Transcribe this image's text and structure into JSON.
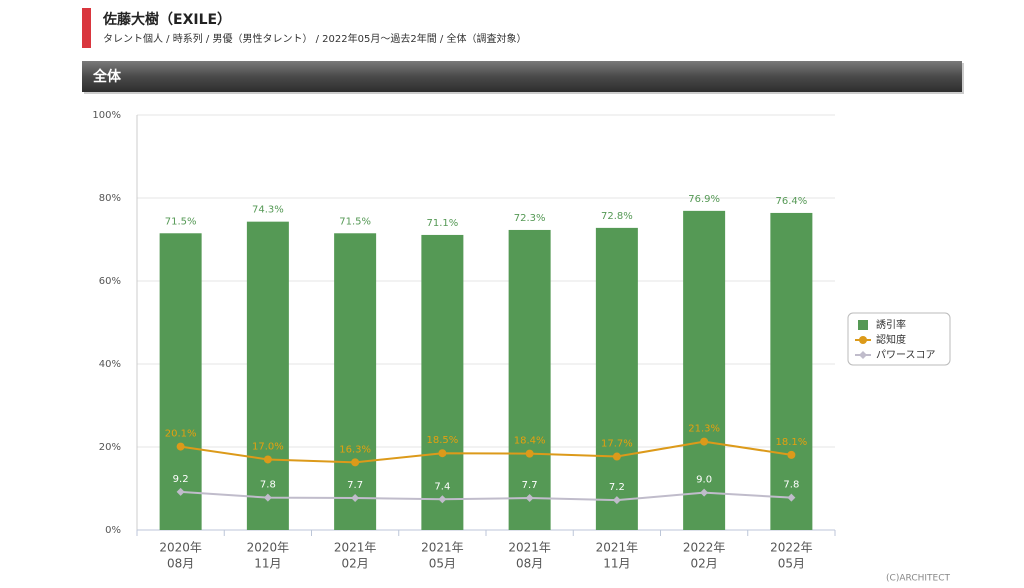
{
  "header": {
    "title": "佐藤大樹（EXILE）",
    "subtitle": "タレント個人 / 時系列 / 男優（男性タレント） / 2022年05月〜過去2年間 / 全体（調査対象）",
    "section": "全体"
  },
  "footer": {
    "copyright": "(C)ARCHITECT"
  },
  "chart_data": {
    "type": "bar",
    "categories": [
      [
        "2020年",
        "08月"
      ],
      [
        "2020年",
        "11月"
      ],
      [
        "2021年",
        "02月"
      ],
      [
        "2021年",
        "05月"
      ],
      [
        "2021年",
        "08月"
      ],
      [
        "2021年",
        "11月"
      ],
      [
        "2022年",
        "02月"
      ],
      [
        "2022年",
        "05月"
      ]
    ],
    "series": [
      {
        "name": "誘引率",
        "type": "bar",
        "color": "#559955",
        "label_color": "#559955",
        "values": [
          71.5,
          74.3,
          71.5,
          71.1,
          72.3,
          72.8,
          76.9,
          76.4
        ],
        "value_labels": [
          "71.5%",
          "74.3%",
          "71.5%",
          "71.1%",
          "72.3%",
          "72.8%",
          "76.9%",
          "76.4%"
        ]
      },
      {
        "name": "認知度",
        "type": "line",
        "color": "#dc9a1a",
        "label_color": "#e5a00f",
        "values": [
          20.1,
          17.0,
          16.3,
          18.5,
          18.4,
          17.7,
          21.3,
          18.1
        ],
        "value_labels": [
          "20.1%",
          "17.0%",
          "16.3%",
          "18.5%",
          "18.4%",
          "17.7%",
          "21.3%",
          "18.1%"
        ]
      },
      {
        "name": "パワースコア",
        "type": "line",
        "marker": "diamond",
        "color": "#c0bccb",
        "label_color": "#ffffff",
        "values": [
          9.2,
          7.8,
          7.7,
          7.4,
          7.7,
          7.2,
          9.0,
          7.8
        ],
        "value_labels": [
          "9.2",
          "7.8",
          "7.7",
          "7.4",
          "7.7",
          "7.2",
          "9.0",
          "7.8"
        ]
      }
    ],
    "ylim": [
      0,
      100
    ],
    "yticks": [
      {
        "value": 0,
        "label": "0%"
      },
      {
        "value": 20,
        "label": "20%"
      },
      {
        "value": 40,
        "label": "40%"
      },
      {
        "value": 60,
        "label": "60%"
      },
      {
        "value": 80,
        "label": "80%"
      },
      {
        "value": 100,
        "label": "100%"
      }
    ],
    "grid": true,
    "legend": "right"
  }
}
